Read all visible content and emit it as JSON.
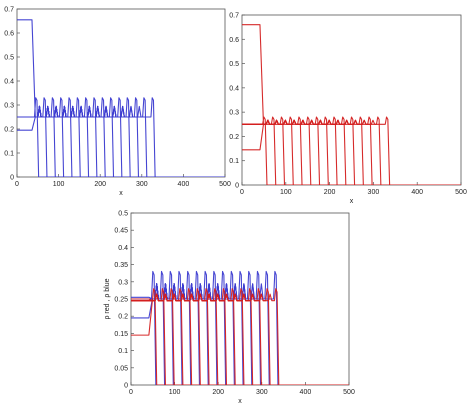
{
  "figure": {
    "panels": [
      {
        "label": "Top-left panel: blue profiles"
      },
      {
        "label": "Top-right panel: red profiles"
      },
      {
        "label": "Bottom panel: red and blue profiles overlaid"
      }
    ]
  },
  "chart_data": [
    {
      "type": "line",
      "xlabel": "x",
      "ylabel": "",
      "xlim": [
        0,
        500
      ],
      "ylim": [
        0,
        0.7
      ],
      "xticks": [
        0,
        100,
        200,
        300,
        400,
        500
      ],
      "xtick_labels": [
        "0",
        "100",
        "200",
        "300",
        "400",
        "500"
      ],
      "yticks": [
        0,
        0.1,
        0.2,
        0.3,
        0.4,
        0.5,
        0.6,
        0.7
      ],
      "ytick_labels": [
        "0",
        "0.1",
        "0.2",
        "0.3",
        "0.4",
        "0.5",
        "0.6",
        "0.7"
      ],
      "grid": false,
      "series": [
        {
          "color": "#3b3bd0",
          "curve_count": 15,
          "initial": {
            "x_from": 0,
            "x_to": 40,
            "top": 0.655,
            "bottom": 0.195
          },
          "front_start_x": 40,
          "front_spacing": 20,
          "front_shift_per_curve": 20,
          "plateau": 0.25,
          "peak": 0.33,
          "pulse_width": 6,
          "end_x": 345,
          "after_end": 0
        }
      ]
    },
    {
      "type": "line",
      "xlabel": "x",
      "ylabel": "",
      "xlim": [
        0,
        500
      ],
      "ylim": [
        0,
        0.7
      ],
      "xticks": [
        0,
        100,
        200,
        300,
        400,
        500
      ],
      "xtick_labels": [
        "0",
        "100",
        "200",
        "300",
        "400",
        "500"
      ],
      "yticks": [
        0,
        0.1,
        0.2,
        0.3,
        0.4,
        0.5,
        0.6,
        0.7
      ],
      "ytick_labels": [
        "0",
        "0.1",
        "0.2",
        "0.3",
        "0.4",
        "0.5",
        "0.6",
        "0.7"
      ],
      "grid": false,
      "series": [
        {
          "color": "#d42020",
          "curve_count": 15,
          "initial": {
            "x_from": 0,
            "x_to": 45,
            "top": 0.66,
            "bottom": 0.145
          },
          "front_start_x": 45,
          "front_spacing": 20,
          "front_shift_per_curve": 20,
          "plateau": 0.25,
          "peak": 0.28,
          "pulse_width": 6,
          "end_x": 345,
          "after_end": 0
        }
      ]
    },
    {
      "type": "line",
      "xlabel": "x",
      "ylabel": "ρ red ,  ρ blue",
      "xlim": [
        0,
        500
      ],
      "ylim": [
        0,
        0.5
      ],
      "xticks": [
        0,
        100,
        200,
        300,
        400,
        500
      ],
      "xtick_labels": [
        "0",
        "100",
        "200",
        "300",
        "400",
        "500"
      ],
      "yticks": [
        0,
        0.05,
        0.1,
        0.15,
        0.2,
        0.25,
        0.3,
        0.35,
        0.4,
        0.45,
        0.5
      ],
      "ytick_labels": [
        "0",
        "0.05",
        "0.1",
        "0.15",
        "0.2",
        "0.25",
        "0.3",
        "0.35",
        "0.4",
        "0.45",
        "0.5"
      ],
      "grid": false,
      "series": [
        {
          "color": "#3b3bd0",
          "curve_count": 15,
          "initial": {
            "x_from": 0,
            "x_to": 45,
            "top": 0.255,
            "bottom": 0.195
          },
          "front_start_x": 45,
          "front_spacing": 20,
          "front_shift_per_curve": 20,
          "plateau": 0.25,
          "peak": 0.33,
          "pulse_width": 6,
          "end_x": 345,
          "after_end": 0
        },
        {
          "color": "#d42020",
          "curve_count": 15,
          "initial": {
            "x_from": 0,
            "x_to": 45,
            "top": 0.25,
            "bottom": 0.145
          },
          "front_start_x": 47,
          "front_spacing": 20,
          "front_shift_per_curve": 20,
          "plateau": 0.245,
          "peak": 0.28,
          "pulse_width": 6,
          "end_x": 348,
          "after_end": 0
        }
      ]
    }
  ]
}
